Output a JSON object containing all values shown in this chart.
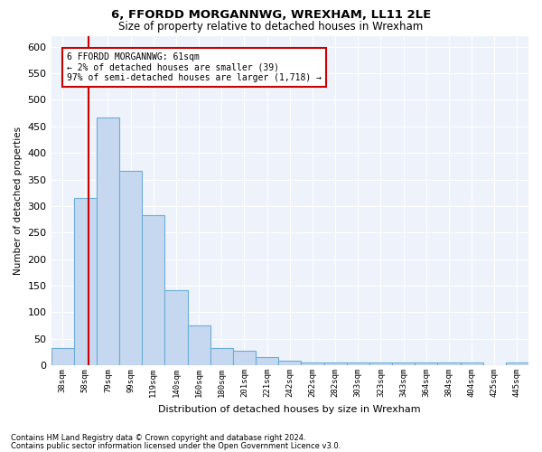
{
  "title1": "6, FFORDD MORGANNWG, WREXHAM, LL11 2LE",
  "title2": "Size of property relative to detached houses in Wrexham",
  "xlabel": "Distribution of detached houses by size in Wrexham",
  "ylabel": "Number of detached properties",
  "categories": [
    "38sqm",
    "58sqm",
    "79sqm",
    "99sqm",
    "119sqm",
    "140sqm",
    "160sqm",
    "180sqm",
    "201sqm",
    "221sqm",
    "242sqm",
    "262sqm",
    "282sqm",
    "303sqm",
    "323sqm",
    "343sqm",
    "364sqm",
    "384sqm",
    "404sqm",
    "425sqm",
    "445sqm"
  ],
  "values": [
    32,
    315,
    467,
    367,
    283,
    142,
    75,
    32,
    28,
    15,
    8,
    5,
    5,
    5,
    5,
    5,
    5,
    5,
    5,
    0,
    5
  ],
  "bar_color": "#c5d8f0",
  "bar_edge_color": "#6baed6",
  "ylim": [
    0,
    620
  ],
  "yticks": [
    0,
    50,
    100,
    150,
    200,
    250,
    300,
    350,
    400,
    450,
    500,
    550,
    600
  ],
  "vline_x": 1.15,
  "vline_color": "#cc0000",
  "annotation_line1": "6 FFORDD MORGANNWG: 61sqm",
  "annotation_line2": "← 2% of detached houses are smaller (39)",
  "annotation_line3": "97% of semi-detached houses are larger (1,718) →",
  "annotation_box_color": "#cc0000",
  "footnote1": "Contains HM Land Registry data © Crown copyright and database right 2024.",
  "footnote2": "Contains public sector information licensed under the Open Government Licence v3.0.",
  "plot_bg_color": "#eef2fa"
}
